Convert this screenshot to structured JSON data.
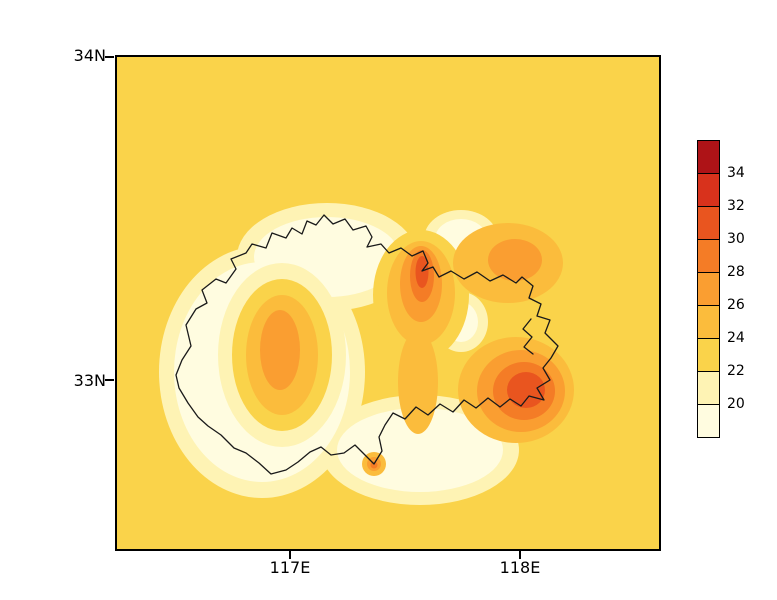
{
  "figure": {
    "description": "Filled contour map of a region with administrative boundary outline and vertical colorbar",
    "background_color": "#FFFFFF",
    "frame_color": "#000000",
    "region_boundary_color": "#1A1A1A"
  },
  "axes": {
    "y_ticks": [
      {
        "label": "34N"
      },
      {
        "label": "33N"
      }
    ],
    "x_ticks": [
      {
        "label": "117E"
      },
      {
        "label": "118E"
      }
    ]
  },
  "colorbar": {
    "labels_top_to_bottom": [
      "34",
      "32",
      "30",
      "28",
      "26",
      "24",
      "22",
      "20"
    ],
    "colors_top_to_bottom": [
      "#AE1317",
      "#D8321C",
      "#E9551F",
      "#F47C26",
      "#FA9E31",
      "#FBBC3C",
      "#FAD34A",
      "#FEF3B4",
      "#FFFCE0"
    ]
  },
  "chart_data": {
    "type": "heatmap",
    "subtype": "filled-contour-map",
    "title": "",
    "xlabel": "",
    "ylabel": "",
    "x_tick_labels": [
      "117E",
      "118E"
    ],
    "y_tick_labels": [
      "34N",
      "33N"
    ],
    "x_range_deg_east": [
      116.25,
      118.6
    ],
    "y_range_deg_north": [
      32.5,
      34.0
    ],
    "contour_levels": [
      20,
      22,
      24,
      26,
      28,
      30,
      32,
      34
    ],
    "level_colors_low_to_high": [
      "#FFFCE0",
      "#FEF3B4",
      "#FAD34A",
      "#FBBC3C",
      "#FA9E31",
      "#F47C26",
      "#E9551F",
      "#D8321C",
      "#AE1317"
    ],
    "background_bin": "22-24",
    "background_bin_color": "#FAD34A",
    "legend_position": "right",
    "grid": false,
    "overlay": "administrative region boundary outline in black",
    "features": [
      {
        "name": "pale low-value (<20) areas across the central region",
        "bin": "<20"
      },
      {
        "name": "west-central warm cell",
        "approx_lon": 116.95,
        "approx_lat": 33.05,
        "peak_bin": "26-28"
      },
      {
        "name": "north-central hot spot",
        "approx_lon": 117.55,
        "approx_lat": 33.3,
        "peak_bin": "30-32"
      },
      {
        "name": "northeast warm area",
        "approx_lon": 117.9,
        "approx_lat": 33.35,
        "peak_bin": "26-28"
      },
      {
        "name": "eastern hot blob",
        "approx_lon": 117.95,
        "approx_lat": 32.95,
        "peak_bin": "30-32"
      },
      {
        "name": "southern small warm spot",
        "approx_lon": 117.35,
        "approx_lat": 32.72,
        "peak_bin": "28-30"
      }
    ]
  }
}
